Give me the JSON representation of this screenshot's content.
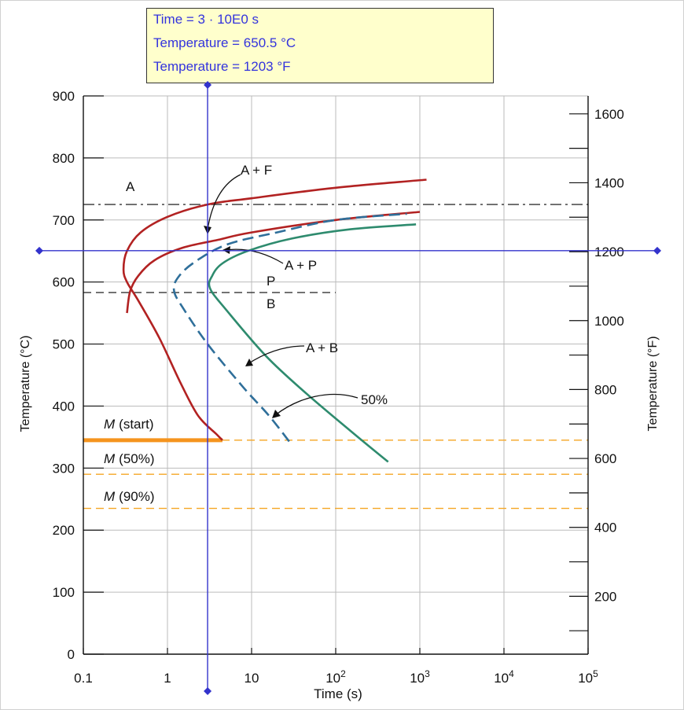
{
  "readout": {
    "time_line": "Time = 3 · 10E0 s",
    "temp_c_line": "Temperature = 650.5 °C",
    "temp_f_line": "Temperature = 1203 °F"
  },
  "chart_data": {
    "type": "line",
    "xlabel": "Time (s)",
    "ylabel": "Temperature (°C)",
    "ylabel_right": "Temperature (°F)",
    "x_scale": "log",
    "xlim": [
      0.1,
      100000
    ],
    "ylim": [
      0,
      900
    ],
    "ylim_right_f": [
      32,
      1652
    ],
    "x_ticks": [
      {
        "value": 0.1,
        "base": "0.1",
        "exp": ""
      },
      {
        "value": 1,
        "base": "1",
        "exp": ""
      },
      {
        "value": 10,
        "base": "10",
        "exp": ""
      },
      {
        "value": 100,
        "base": "10",
        "exp": "2"
      },
      {
        "value": 1000,
        "base": "10",
        "exp": "3"
      },
      {
        "value": 10000,
        "base": "10",
        "exp": "4"
      },
      {
        "value": 100000,
        "base": "10",
        "exp": "5"
      }
    ],
    "y_ticks": [
      0,
      100,
      200,
      300,
      400,
      500,
      600,
      700,
      800,
      900
    ],
    "y_right_labeled_ticks": [
      200,
      400,
      600,
      800,
      1000,
      1200,
      1400,
      1600
    ],
    "y_right_minor_ticks": [
      100,
      300,
      500,
      700,
      900,
      1100,
      1300,
      1500
    ],
    "grid": true,
    "cursor": {
      "time": 3,
      "temperature_c": 650.5
    },
    "series": [
      {
        "style": "solid",
        "color": "#b22222",
        "points": [
          [
            4.5,
            345
          ],
          [
            3.8,
            355
          ],
          [
            2.3,
            385
          ],
          [
            1.4,
            440
          ],
          [
            0.8,
            510
          ],
          [
            0.45,
            570
          ],
          [
            0.33,
            600
          ],
          [
            0.3,
            620
          ],
          [
            0.33,
            650
          ],
          [
            0.48,
            680
          ],
          [
            1.0,
            705
          ],
          [
            3,
            725
          ],
          [
            10,
            735
          ],
          [
            100,
            752
          ],
          [
            1200,
            765
          ]
        ]
      },
      {
        "style": "solid",
        "color": "#b22222",
        "points": [
          [
            0.33,
            550
          ],
          [
            0.36,
            585
          ],
          [
            0.45,
            610
          ],
          [
            0.7,
            635
          ],
          [
            1.5,
            655
          ],
          [
            4,
            668
          ],
          [
            10,
            680
          ],
          [
            100,
            700
          ],
          [
            1000,
            713
          ]
        ]
      },
      {
        "style": "dashed",
        "color": "#2f6f9a",
        "points": [
          [
            28,
            343
          ],
          [
            16,
            385
          ],
          [
            8,
            430
          ],
          [
            3,
            500
          ],
          [
            1.5,
            560
          ],
          [
            1.2,
            585
          ],
          [
            1.3,
            605
          ],
          [
            2,
            630
          ],
          [
            5,
            660
          ],
          [
            20,
            680
          ],
          [
            100,
            700
          ],
          [
            700,
            710
          ]
        ]
      },
      {
        "style": "solid",
        "color": "#2e8b6e",
        "points": [
          [
            420,
            310
          ],
          [
            150,
            360
          ],
          [
            45,
            420
          ],
          [
            15,
            480
          ],
          [
            5,
            555
          ],
          [
            3.2,
            590
          ],
          [
            3.4,
            610
          ],
          [
            4.5,
            630
          ],
          [
            9,
            650
          ],
          [
            30,
            670
          ],
          [
            150,
            685
          ],
          [
            900,
            693
          ]
        ]
      }
    ],
    "reference_lines": [
      {
        "temperature_c": 725,
        "style": "dash-dot",
        "color": "#333333",
        "x_from": 0.1,
        "x_to": 100000
      },
      {
        "temperature_c": 583,
        "style": "dashed",
        "color": "#333333",
        "x_from": 0.1,
        "x_to": 100
      },
      {
        "temperature_c": 345,
        "style": "dashed",
        "color": "#f5a623",
        "x_from": 0.1,
        "x_to": 100000
      },
      {
        "temperature_c": 290,
        "style": "dashed",
        "color": "#f5a623",
        "x_from": 0.1,
        "x_to": 100000
      },
      {
        "temperature_c": 235,
        "style": "dashed",
        "color": "#f5a623",
        "x_from": 0.1,
        "x_to": 100000
      }
    ],
    "m_start_bar": {
      "temperature_c": 345,
      "x_from": 0.1,
      "x_to": 4.5,
      "color": "#f5941e"
    },
    "annotations": {
      "A": "A",
      "AF": "A + F",
      "AP": "A + P",
      "P": "P",
      "B": "B",
      "AB": "A + B",
      "pct50": "50%",
      "M": "M",
      "m_start": "(start)",
      "m_50": "(50%)",
      "m_90": "(90%)"
    },
    "colors": {
      "cursor": "#3333cc",
      "grid": "#bbbbbb",
      "axis": "#111111"
    }
  }
}
